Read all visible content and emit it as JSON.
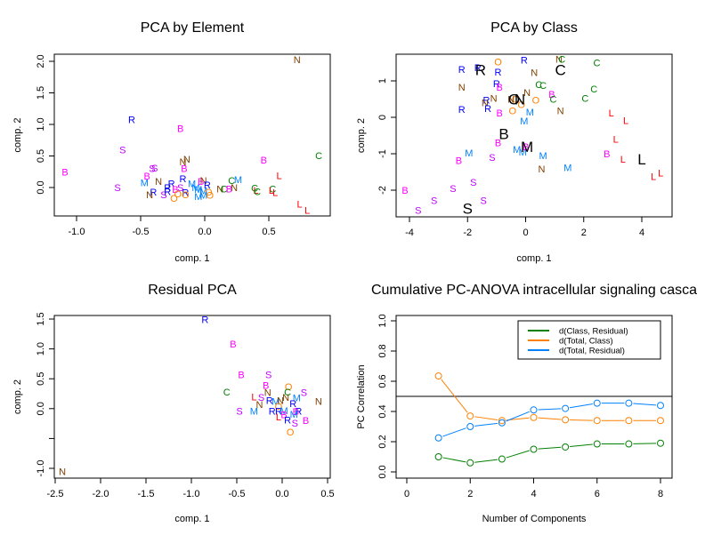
{
  "chart_data": [
    {
      "type": "scatter",
      "title": "PCA by Element",
      "xlabel": "comp. 1",
      "ylabel": "comp. 2",
      "xlim": [
        -1.17,
        0.98
      ],
      "ylim": [
        -0.45,
        2.1
      ],
      "xticks": [
        "-1.0",
        "-0.5",
        "0.0",
        "0.5"
      ],
      "xtick_values": [
        -1.0,
        -0.5,
        0.0,
        0.5
      ],
      "yticks": [
        "0.0",
        "0.5",
        "1.0",
        "1.5",
        "2.0"
      ],
      "ytick_values": [
        0.0,
        0.5,
        1.0,
        1.5,
        2.0
      ],
      "points": [
        {
          "label": "N",
          "x": 0.72,
          "y": 2.03
        },
        {
          "label": "R",
          "x": -0.57,
          "y": 1.08
        },
        {
          "label": "B",
          "x": -0.19,
          "y": 0.94
        },
        {
          "label": "S",
          "x": -0.64,
          "y": 0.6
        },
        {
          "label": "C",
          "x": 0.89,
          "y": 0.51
        },
        {
          "label": "N",
          "x": -0.17,
          "y": 0.41
        },
        {
          "label": "N",
          "x": -0.14,
          "y": 0.45
        },
        {
          "label": "B",
          "x": 0.46,
          "y": 0.44
        },
        {
          "label": "S",
          "x": -0.41,
          "y": 0.3
        },
        {
          "label": "S",
          "x": -0.39,
          "y": 0.31
        },
        {
          "label": "B",
          "x": -0.16,
          "y": 0.3
        },
        {
          "label": "B",
          "x": -1.09,
          "y": 0.25
        },
        {
          "label": "L",
          "x": 0.58,
          "y": 0.19
        },
        {
          "label": "B",
          "x": -0.45,
          "y": 0.18
        },
        {
          "label": "M",
          "x": -0.47,
          "y": 0.08
        },
        {
          "label": "N",
          "x": -0.36,
          "y": 0.1
        },
        {
          "label": "R",
          "x": -0.17,
          "y": 0.14
        },
        {
          "label": "C",
          "x": 0.21,
          "y": 0.11
        },
        {
          "label": "M",
          "x": 0.26,
          "y": 0.13
        },
        {
          "label": "R",
          "x": -0.26,
          "y": 0.06
        },
        {
          "label": "M",
          "x": -0.1,
          "y": 0.06
        },
        {
          "label": "B",
          "x": -0.03,
          "y": 0.1
        },
        {
          "label": "N",
          "x": -0.01,
          "y": 0.11
        },
        {
          "label": "R",
          "x": 0.02,
          "y": 0.04
        },
        {
          "label": "S",
          "x": -0.68,
          "y": 0.0
        },
        {
          "label": "R",
          "x": -0.29,
          "y": 0.0
        },
        {
          "label": "M",
          "x": -0.07,
          "y": 0.0
        },
        {
          "label": "N",
          "x": 0.12,
          "y": -0.02
        },
        {
          "label": "C",
          "x": 0.15,
          "y": -0.02
        },
        {
          "label": "N",
          "x": 0.23,
          "y": 0.0
        },
        {
          "label": "B",
          "x": 0.19,
          "y": -0.02
        },
        {
          "label": "C",
          "x": 0.39,
          "y": -0.01
        },
        {
          "label": "C",
          "x": 0.53,
          "y": -0.02
        },
        {
          "label": "L",
          "x": 0.4,
          "y": -0.04
        },
        {
          "label": "L",
          "x": 0.52,
          "y": -0.04
        },
        {
          "label": "C",
          "x": 0.41,
          "y": -0.06
        },
        {
          "label": "L",
          "x": 0.55,
          "y": -0.08
        },
        {
          "label": "S",
          "x": -0.19,
          "y": 0.0
        },
        {
          "label": "B",
          "x": -0.23,
          "y": -0.03
        },
        {
          "label": "R",
          "x": -0.4,
          "y": -0.07
        },
        {
          "label": "N",
          "x": -0.43,
          "y": -0.11
        },
        {
          "label": "S",
          "x": -0.32,
          "y": -0.11
        },
        {
          "label": "R",
          "x": -0.29,
          "y": -0.06
        },
        {
          "label": "O",
          "x": -0.21,
          "y": -0.1
        },
        {
          "label": "O",
          "x": -0.24,
          "y": -0.17
        },
        {
          "label": "R",
          "x": -0.15,
          "y": -0.08
        },
        {
          "label": "O",
          "x": -0.15,
          "y": -0.11
        },
        {
          "label": "M",
          "x": -0.05,
          "y": -0.03
        },
        {
          "label": "M",
          "x": -0.01,
          "y": -0.05
        },
        {
          "label": "O",
          "x": 0.03,
          "y": -0.07
        },
        {
          "label": "O",
          "x": 0.04,
          "y": -0.12
        },
        {
          "label": "M",
          "x": -0.05,
          "y": -0.14
        },
        {
          "label": "M",
          "x": -0.01,
          "y": -0.12
        },
        {
          "label": "L",
          "x": 0.74,
          "y": -0.26
        },
        {
          "label": "L",
          "x": 0.8,
          "y": -0.36
        }
      ]
    },
    {
      "type": "scatter",
      "title": "PCA by Class",
      "xlabel": "comp. 1",
      "ylabel": "comp. 2",
      "xlim": [
        -4.5,
        5.1
      ],
      "ylim": [
        -2.75,
        1.75
      ],
      "xticks": [
        "-4",
        "-2",
        "0",
        "2",
        "4"
      ],
      "xtick_values": [
        -4,
        -2,
        0,
        2,
        4
      ],
      "yticks": [
        "-2",
        "-1",
        "0",
        "1"
      ],
      "ytick_values": [
        -2,
        -1,
        0,
        1
      ],
      "points": [
        {
          "label": "O",
          "x": -0.95,
          "y": 1.52
        },
        {
          "label": "R",
          "x": -0.05,
          "y": 1.57
        },
        {
          "label": "N",
          "x": 1.15,
          "y": 1.6
        },
        {
          "label": "C",
          "x": 1.25,
          "y": 1.6
        },
        {
          "label": "C",
          "x": 2.45,
          "y": 1.5
        },
        {
          "label": "R",
          "x": -2.2,
          "y": 1.32
        },
        {
          "label": "R",
          "x": -1.65,
          "y": 1.36
        },
        {
          "label": "R",
          "x": -0.95,
          "y": 1.25
        },
        {
          "label": "N",
          "x": 0.3,
          "y": 1.23
        },
        {
          "label": "R",
          "x": -1.0,
          "y": 0.93
        },
        {
          "label": "B",
          "x": -0.9,
          "y": 0.83
        },
        {
          "label": "N",
          "x": -2.2,
          "y": 0.83
        },
        {
          "label": "C",
          "x": 0.45,
          "y": 0.9
        },
        {
          "label": "C",
          "x": 0.6,
          "y": 0.88
        },
        {
          "label": "C",
          "x": 2.35,
          "y": 0.78
        },
        {
          "label": "N",
          "x": 0.05,
          "y": 0.68
        },
        {
          "label": "B",
          "x": 0.9,
          "y": 0.63
        },
        {
          "label": "C",
          "x": 0.95,
          "y": 0.5
        },
        {
          "label": "C",
          "x": 2.05,
          "y": 0.53
        },
        {
          "label": "O",
          "x": -0.35,
          "y": 0.5
        },
        {
          "label": "N",
          "x": -1.1,
          "y": 0.52
        },
        {
          "label": "R",
          "x": -1.35,
          "y": 0.48
        },
        {
          "label": "N",
          "x": -1.4,
          "y": 0.4
        },
        {
          "label": "N",
          "x": -0.5,
          "y": 0.5
        },
        {
          "label": "O",
          "x": 0.35,
          "y": 0.48
        },
        {
          "label": "O",
          "x": -0.15,
          "y": 0.35
        },
        {
          "label": "R",
          "x": -2.2,
          "y": 0.22
        },
        {
          "label": "R",
          "x": -1.3,
          "y": 0.25
        },
        {
          "label": "O",
          "x": -0.45,
          "y": 0.18
        },
        {
          "label": "B",
          "x": -0.9,
          "y": 0.12
        },
        {
          "label": "M",
          "x": 0.15,
          "y": 0.15
        },
        {
          "label": "N",
          "x": 1.2,
          "y": 0.18
        },
        {
          "label": "M",
          "x": -0.05,
          "y": -0.1
        },
        {
          "label": "L",
          "x": 2.95,
          "y": 0.12
        },
        {
          "label": "L",
          "x": 3.45,
          "y": -0.08
        },
        {
          "label": "L",
          "x": 3.1,
          "y": -0.6
        },
        {
          "label": "B",
          "x": -0.95,
          "y": -0.7
        },
        {
          "label": "M",
          "x": -0.3,
          "y": -0.88
        },
        {
          "label": "M",
          "x": -0.1,
          "y": -0.95
        },
        {
          "label": "B",
          "x": 0.0,
          "y": -0.8
        },
        {
          "label": "M",
          "x": 0.6,
          "y": -1.05
        },
        {
          "label": "B",
          "x": 2.8,
          "y": -1.0
        },
        {
          "label": "L",
          "x": 3.35,
          "y": -1.15
        },
        {
          "label": "M",
          "x": -1.95,
          "y": -0.97
        },
        {
          "label": "S",
          "x": -1.15,
          "y": -1.1
        },
        {
          "label": "B",
          "x": -2.3,
          "y": -1.18
        },
        {
          "label": "N",
          "x": 0.55,
          "y": -1.42
        },
        {
          "label": "M",
          "x": 1.45,
          "y": -1.38
        },
        {
          "label": "L",
          "x": 4.4,
          "y": -1.62
        },
        {
          "label": "L",
          "x": 4.65,
          "y": -1.52
        },
        {
          "label": "S",
          "x": -1.8,
          "y": -1.78
        },
        {
          "label": "S",
          "x": -2.5,
          "y": -1.95
        },
        {
          "label": "B",
          "x": -4.15,
          "y": -2.0
        },
        {
          "label": "S",
          "x": -1.45,
          "y": -2.28
        },
        {
          "label": "S",
          "x": -3.15,
          "y": -2.28
        },
        {
          "label": "S",
          "x": -3.7,
          "y": -2.55
        }
      ],
      "class_centroids": [
        {
          "label": "R",
          "x": -1.55,
          "y": 1.3
        },
        {
          "label": "C",
          "x": 1.2,
          "y": 1.3
        },
        {
          "label": "O",
          "x": -0.4,
          "y": 0.5
        },
        {
          "label": "N",
          "x": -0.2,
          "y": 0.5
        },
        {
          "label": "B",
          "x": -0.75,
          "y": -0.45
        },
        {
          "label": "M",
          "x": 0.05,
          "y": -0.8
        },
        {
          "label": "L",
          "x": 4.0,
          "y": -1.15
        },
        {
          "label": "S",
          "x": -2.0,
          "y": -2.5
        }
      ]
    },
    {
      "type": "scatter",
      "title": "Residual PCA",
      "xlabel": "comp. 1",
      "ylabel": "comp. 2",
      "xlim": [
        -2.55,
        0.53
      ],
      "ylim": [
        -1.18,
        1.56
      ],
      "xticks": [
        "-2.5",
        "-2.0",
        "-1.5",
        "-1.0",
        "-0.5",
        "0.0",
        "0.5"
      ],
      "xtick_values": [
        -2.5,
        -2.0,
        -1.5,
        -1.0,
        -0.5,
        0.0,
        0.5
      ],
      "yticks": [
        "-1.0",
        "",
        "0.0",
        "0.5",
        "1.0",
        "1.5"
      ],
      "ytick_values": [
        -1.0,
        -0.5,
        0.0,
        0.5,
        1.0,
        1.5
      ],
      "points": [
        {
          "label": "R",
          "x": -0.85,
          "y": 1.49
        },
        {
          "label": "B",
          "x": -0.54,
          "y": 1.08
        },
        {
          "label": "B",
          "x": -0.45,
          "y": 0.57
        },
        {
          "label": "S",
          "x": -0.15,
          "y": 0.57
        },
        {
          "label": "B",
          "x": -0.18,
          "y": 0.39
        },
        {
          "label": "O",
          "x": 0.07,
          "y": 0.37
        },
        {
          "label": "C",
          "x": -0.61,
          "y": 0.28
        },
        {
          "label": "N",
          "x": -0.16,
          "y": 0.27
        },
        {
          "label": "C",
          "x": 0.06,
          "y": 0.28
        },
        {
          "label": "S",
          "x": 0.24,
          "y": 0.27
        },
        {
          "label": "L",
          "x": -0.31,
          "y": 0.2
        },
        {
          "label": "S",
          "x": -0.23,
          "y": 0.19
        },
        {
          "label": "N",
          "x": 0.04,
          "y": 0.19
        },
        {
          "label": "M",
          "x": 0.16,
          "y": 0.18
        },
        {
          "label": "R",
          "x": -0.14,
          "y": 0.14
        },
        {
          "label": "M",
          "x": -0.07,
          "y": 0.12
        },
        {
          "label": "N",
          "x": -0.02,
          "y": 0.14
        },
        {
          "label": "N",
          "x": 0.4,
          "y": 0.12
        },
        {
          "label": "N",
          "x": -0.25,
          "y": 0.07
        },
        {
          "label": "R",
          "x": 0.12,
          "y": 0.09
        },
        {
          "label": "O",
          "x": -0.04,
          "y": 0.04
        },
        {
          "label": "S",
          "x": -0.47,
          "y": -0.04
        },
        {
          "label": "M",
          "x": -0.31,
          "y": -0.04
        },
        {
          "label": "R",
          "x": -0.11,
          "y": -0.04
        },
        {
          "label": "R",
          "x": -0.04,
          "y": -0.04
        },
        {
          "label": "M",
          "x": 0.02,
          "y": -0.03
        },
        {
          "label": "R",
          "x": 0.18,
          "y": -0.04
        },
        {
          "label": "B",
          "x": 0.15,
          "y": -0.05
        },
        {
          "label": "B",
          "x": 0.02,
          "y": -0.1
        },
        {
          "label": "M",
          "x": 0.13,
          "y": -0.09
        },
        {
          "label": "L",
          "x": -0.04,
          "y": -0.14
        },
        {
          "label": "R",
          "x": 0.06,
          "y": -0.19
        },
        {
          "label": "B",
          "x": 0.26,
          "y": -0.2
        },
        {
          "label": "S",
          "x": 0.14,
          "y": -0.24
        },
        {
          "label": "O",
          "x": 0.09,
          "y": -0.39
        },
        {
          "label": "N",
          "x": -2.42,
          "y": -1.05
        }
      ]
    },
    {
      "type": "line",
      "title": "Cumulative PC-ANOVA intracellular signaling casca",
      "xlabel": "Number of Components",
      "ylabel": "PC Correlation",
      "xlim": [
        -0.3,
        8.35
      ],
      "ylim": [
        -0.04,
        1.04
      ],
      "xticks": [
        "0",
        "2",
        "4",
        "6",
        "8"
      ],
      "xtick_values": [
        0,
        2,
        4,
        6,
        8
      ],
      "yticks": [
        "0.0",
        "0.2",
        "0.4",
        "0.6",
        "0.8",
        "1.0"
      ],
      "ytick_values": [
        0.0,
        0.2,
        0.4,
        0.6,
        0.8,
        1.0
      ],
      "x": [
        1,
        2,
        3,
        4,
        5,
        6,
        7,
        8
      ],
      "series": [
        {
          "name": "d(Class, Residual)",
          "color": "#008000",
          "values": [
            0.1,
            0.06,
            0.085,
            0.15,
            0.165,
            0.185,
            0.185,
            0.19
          ]
        },
        {
          "name": "d(Total, Class)",
          "color": "#ff8000",
          "values": [
            0.635,
            0.37,
            0.34,
            0.36,
            0.345,
            0.34,
            0.34,
            0.34
          ]
        },
        {
          "name": "d(Total, Residual)",
          "color": "#0080ff",
          "values": [
            0.225,
            0.3,
            0.325,
            0.41,
            0.42,
            0.455,
            0.455,
            0.44
          ]
        }
      ],
      "hline": 0.5,
      "legend": "top-right",
      "grid": false
    }
  ],
  "class_colors": {
    "B": "#ff00ff",
    "C": "#008000",
    "L": "#ff0000",
    "M": "#0080ff",
    "N": "#804000",
    "O": "#ff8000",
    "R": "#0000ff",
    "S": "#bf00ff"
  }
}
